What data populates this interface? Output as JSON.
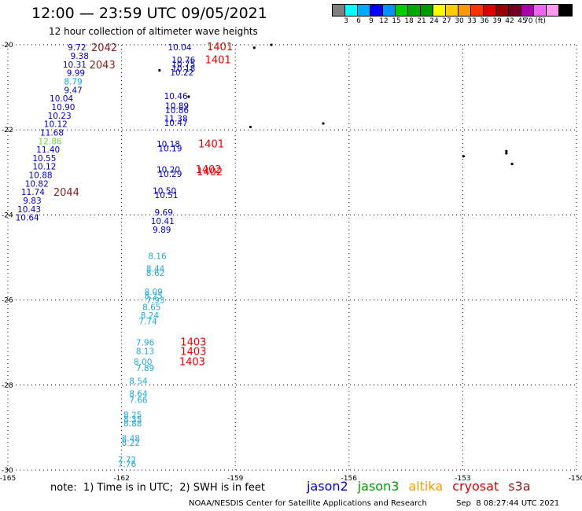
{
  "title": "12:00 — 23:59 UTC 09/05/2021",
  "subtitle": "12 hour collection of altimeter wave heights",
  "legend": {
    "colors": [
      "#7f7f7f",
      "#00ffff",
      "#00aaff",
      "#0000ff",
      "#0090ff",
      "#00cc00",
      "#00aa00",
      "#009900",
      "#ffff00",
      "#ffcc00",
      "#ff9900",
      "#ff3300",
      "#dd0000",
      "#990000",
      "#770022",
      "#aa00aa",
      "#ee66ee",
      "#ff99ee",
      "#000000"
    ],
    "labels": [
      "3",
      "6",
      "9",
      "12",
      "15",
      "18",
      "21",
      "24",
      "27",
      "30",
      "33",
      "36",
      "39",
      "42",
      "45",
      "70 (ft)"
    ]
  },
  "map": {
    "lon_ticks": [
      "-165",
      "-162",
      "-159",
      "-156",
      "-153",
      "-150"
    ],
    "lat_ticks": [
      "-20",
      "-22",
      "-24",
      "-26",
      "-28",
      "-30"
    ],
    "lon_range": [
      -165,
      -150
    ],
    "lat_range": [
      -30,
      -20
    ],
    "grid": "dotted"
  },
  "swh_readings": [
    {
      "text": "9.72",
      "lon": -163.42,
      "lat": -20.06,
      "color": "#0000cc"
    },
    {
      "text": "9.38",
      "lon": -163.35,
      "lat": -20.26,
      "color": "#0000cc"
    },
    {
      "text": "10.31",
      "lon": -163.55,
      "lat": -20.46,
      "color": "#0000cc"
    },
    {
      "text": "9.99",
      "lon": -163.45,
      "lat": -20.66,
      "color": "#0000cc"
    },
    {
      "text": "8.79",
      "lon": -163.52,
      "lat": -20.86,
      "color": "#00aaee"
    },
    {
      "text": "9.47",
      "lon": -163.52,
      "lat": -21.06,
      "color": "#0000cc"
    },
    {
      "text": "10.04",
      "lon": -163.9,
      "lat": -21.26,
      "color": "#0000cc"
    },
    {
      "text": "10.90",
      "lon": -163.85,
      "lat": -21.46,
      "color": "#0000cc"
    },
    {
      "text": "10.23",
      "lon": -163.95,
      "lat": -21.66,
      "color": "#0000cc"
    },
    {
      "text": "10.12",
      "lon": -164.05,
      "lat": -21.86,
      "color": "#0000cc"
    },
    {
      "text": "11.68",
      "lon": -164.15,
      "lat": -22.06,
      "color": "#0000cc"
    },
    {
      "text": "12.86",
      "lon": -164.2,
      "lat": -22.26,
      "color": "#66dd44"
    },
    {
      "text": "11.40",
      "lon": -164.25,
      "lat": -22.46,
      "color": "#0000cc"
    },
    {
      "text": "10.55",
      "lon": -164.35,
      "lat": -22.66,
      "color": "#0000cc"
    },
    {
      "text": "10.12",
      "lon": -164.35,
      "lat": -22.86,
      "color": "#0000cc"
    },
    {
      "text": "10.88",
      "lon": -164.45,
      "lat": -23.06,
      "color": "#0000cc"
    },
    {
      "text": "10.82",
      "lon": -164.55,
      "lat": -23.26,
      "color": "#0000cc"
    },
    {
      "text": "11.74",
      "lon": -164.65,
      "lat": -23.46,
      "color": "#0000cc"
    },
    {
      "text": "9.83",
      "lon": -164.6,
      "lat": -23.66,
      "color": "#0000cc"
    },
    {
      "text": "10.43",
      "lon": -164.75,
      "lat": -23.86,
      "color": "#0000cc"
    },
    {
      "text": "10.64",
      "lon": -164.8,
      "lat": -24.06,
      "color": "#0000cc"
    },
    {
      "text": "10.04",
      "lon": -160.78,
      "lat": -20.06,
      "color": "#0000cc"
    },
    {
      "text": "10.76",
      "lon": -160.68,
      "lat": -20.35,
      "color": "#0000cc"
    },
    {
      "text": "10.75",
      "lon": -160.68,
      "lat": -20.45,
      "color": "#0000cc"
    },
    {
      "text": "10.18",
      "lon": -160.68,
      "lat": -20.55,
      "color": "#0000cc"
    },
    {
      "text": "10.22",
      "lon": -160.72,
      "lat": -20.65,
      "color": "#0000cc"
    },
    {
      "text": "10.46",
      "lon": -160.88,
      "lat": -21.2,
      "color": "#0000cc"
    },
    {
      "text": "10.89",
      "lon": -160.85,
      "lat": -21.43,
      "color": "#0000cc"
    },
    {
      "text": "10.86",
      "lon": -160.85,
      "lat": -21.53,
      "color": "#0000cc"
    },
    {
      "text": "11.38",
      "lon": -160.88,
      "lat": -21.73,
      "color": "#0000cc"
    },
    {
      "text": "10.47",
      "lon": -160.88,
      "lat": -21.83,
      "color": "#0000cc"
    },
    {
      "text": "10.18",
      "lon": -161.08,
      "lat": -22.33,
      "color": "#0000cc"
    },
    {
      "text": "10.19",
      "lon": -161.03,
      "lat": -22.43,
      "color": "#0000cc"
    },
    {
      "text": "10.20",
      "lon": -161.08,
      "lat": -22.93,
      "color": "#0000cc"
    },
    {
      "text": "10.29",
      "lon": -161.03,
      "lat": -23.03,
      "color": "#0000cc"
    },
    {
      "text": "10.50",
      "lon": -161.18,
      "lat": -23.43,
      "color": "#0000cc"
    },
    {
      "text": "10.51",
      "lon": -161.13,
      "lat": -23.53,
      "color": "#0000cc"
    },
    {
      "text": "9.69",
      "lon": -161.13,
      "lat": -23.94,
      "color": "#0000cc"
    },
    {
      "text": "10.41",
      "lon": -161.23,
      "lat": -24.14,
      "color": "#0000cc"
    },
    {
      "text": "9.89",
      "lon": -161.18,
      "lat": -24.34,
      "color": "#0000cc"
    },
    {
      "text": "8.16",
      "lon": -161.3,
      "lat": -24.96,
      "color": "#22aadd"
    },
    {
      "text": "8.44",
      "lon": -161.35,
      "lat": -25.26,
      "color": "#22aadd"
    },
    {
      "text": "8.62",
      "lon": -161.35,
      "lat": -25.36,
      "color": "#22aadd"
    },
    {
      "text": "8.09",
      "lon": -161.4,
      "lat": -25.8,
      "color": "#22aadd"
    },
    {
      "text": "8.25",
      "lon": -161.4,
      "lat": -25.9,
      "color": "#22aadd"
    },
    {
      "text": "7.93",
      "lon": -161.35,
      "lat": -26.0,
      "color": "#22aadd"
    },
    {
      "text": "8.65",
      "lon": -161.45,
      "lat": -26.16,
      "color": "#22aadd"
    },
    {
      "text": "8.24",
      "lon": -161.5,
      "lat": -26.36,
      "color": "#22aadd"
    },
    {
      "text": "7.74",
      "lon": -161.55,
      "lat": -26.5,
      "color": "#22aadd"
    },
    {
      "text": "7.96",
      "lon": -161.62,
      "lat": -27.0,
      "color": "#22aadd"
    },
    {
      "text": "8.13",
      "lon": -161.62,
      "lat": -27.2,
      "color": "#22aadd"
    },
    {
      "text": "8.00",
      "lon": -161.68,
      "lat": -27.45,
      "color": "#22aadd"
    },
    {
      "text": "7.89",
      "lon": -161.62,
      "lat": -27.6,
      "color": "#22aadd"
    },
    {
      "text": "8.54",
      "lon": -161.8,
      "lat": -27.9,
      "color": "#22aadd"
    },
    {
      "text": "8.64",
      "lon": -161.8,
      "lat": -28.2,
      "color": "#22aadd"
    },
    {
      "text": "7.66",
      "lon": -161.8,
      "lat": -28.35,
      "color": "#22aadd"
    },
    {
      "text": "8.25",
      "lon": -161.95,
      "lat": -28.7,
      "color": "#22aadd"
    },
    {
      "text": "8.35",
      "lon": -161.95,
      "lat": -28.8,
      "color": "#22aadd"
    },
    {
      "text": "8.88",
      "lon": -161.95,
      "lat": -28.9,
      "color": "#22aadd"
    },
    {
      "text": "8.48",
      "lon": -162.0,
      "lat": -29.25,
      "color": "#22aadd"
    },
    {
      "text": "8.22",
      "lon": -162.0,
      "lat": -29.35,
      "color": "#22aadd"
    },
    {
      "text": "7.72",
      "lon": -162.1,
      "lat": -29.75,
      "color": "#22aadd"
    },
    {
      "text": "7.76",
      "lon": -162.1,
      "lat": -29.85,
      "color": "#22aadd"
    }
  ],
  "pass_labels": [
    {
      "text": "2042",
      "lon": -162.8,
      "lat": -20.06,
      "color": "#8b1a1a"
    },
    {
      "text": "2043",
      "lon": -162.85,
      "lat": -20.46,
      "color": "#8b1a1a"
    },
    {
      "text": "2044",
      "lon": -163.8,
      "lat": -23.46,
      "color": "#8b1a1a"
    },
    {
      "text": "1401",
      "lon": -159.75,
      "lat": -20.04,
      "color": "#ee0000"
    },
    {
      "text": "1401",
      "lon": -159.8,
      "lat": -20.34,
      "color": "#ee0000"
    },
    {
      "text": "1401",
      "lon": -159.98,
      "lat": -22.32,
      "color": "#ee0000"
    },
    {
      "text": "1402",
      "lon": -160.05,
      "lat": -22.92,
      "color": "#ee0000"
    },
    {
      "text": "1402",
      "lon": -160.02,
      "lat": -22.98,
      "color": "#ee0000"
    },
    {
      "text": "1403",
      "lon": -160.45,
      "lat": -26.98,
      "color": "#ee0000"
    },
    {
      "text": "1403",
      "lon": -160.45,
      "lat": -27.2,
      "color": "#ee0000"
    },
    {
      "text": "1403",
      "lon": -160.48,
      "lat": -27.44,
      "color": "#ee0000"
    }
  ],
  "islands": [
    {
      "lon": -161.0,
      "lat": -20.6
    },
    {
      "lon": -158.5,
      "lat": -20.07
    },
    {
      "lon": -158.05,
      "lat": -20.0
    },
    {
      "lon": -160.23,
      "lat": -21.22
    },
    {
      "lon": -158.6,
      "lat": -21.93
    },
    {
      "lon": -156.68,
      "lat": -21.85
    },
    {
      "lon": -152.98,
      "lat": -22.62
    },
    {
      "lon": -151.85,
      "lat": -22.5
    },
    {
      "lon": -151.85,
      "lat": -22.55
    },
    {
      "lon": -151.7,
      "lat": -22.8
    }
  ],
  "note": "note:  1) Time is in UTC;  2) SWH is in feet",
  "satellites": [
    {
      "name": "jason2",
      "color": "#0000dd"
    },
    {
      "name": "jason3",
      "color": "#009900"
    },
    {
      "name": "altika",
      "color": "#ff9900"
    },
    {
      "name": "cryosat",
      "color": "#dd0000"
    },
    {
      "name": "s3a",
      "color": "#8b1a1a"
    }
  ],
  "credit": "NOAA/NESDIS Center for Satellite Applications and Research",
  "timestamp": "Sep  8 08:27:44 UTC 2021"
}
